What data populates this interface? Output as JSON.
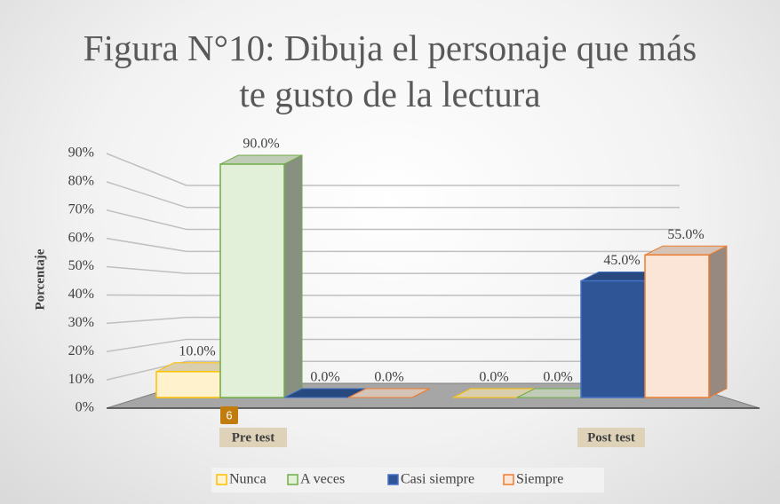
{
  "chart_data": {
    "type": "bar3d",
    "title": "Figura N°10: Dibuja el personaje que más te gusto de la lectura",
    "y_label": "Porcentaje",
    "categories": [
      "Pre test",
      "Post test"
    ],
    "series": [
      {
        "name": "Nunca",
        "color": "#fff2cc",
        "edge": "#ffc000",
        "values": [
          10,
          0
        ],
        "value_labels": [
          "10.0%",
          "0.0%"
        ]
      },
      {
        "name": "A veces",
        "color": "#e2f0d9",
        "edge": "#70ad47",
        "values": [
          90,
          0
        ],
        "value_labels": [
          "90.0%",
          "0.0%"
        ]
      },
      {
        "name": "Casi siempre",
        "color": "#2f5597",
        "edge": "#4472c4",
        "values": [
          0,
          45
        ],
        "value_labels": [
          "0.0%",
          "45.0%"
        ]
      },
      {
        "name": "Siempre",
        "color": "#fbe5d6",
        "edge": "#ed7d31",
        "values": [
          0,
          55
        ],
        "value_labels": [
          "0.0%",
          "55.0%"
        ]
      }
    ],
    "ylim": [
      0,
      90
    ],
    "yticks": [
      {
        "value": 0,
        "label": "0%"
      },
      {
        "value": 10,
        "label": "10%"
      },
      {
        "value": 20,
        "label": "20%"
      },
      {
        "value": 30,
        "label": "30%"
      },
      {
        "value": 40,
        "label": "40%"
      },
      {
        "value": 50,
        "label": "50%"
      },
      {
        "value": 60,
        "label": "60%"
      },
      {
        "value": 70,
        "label": "70%"
      },
      {
        "value": 80,
        "label": "80%"
      },
      {
        "value": 90,
        "label": "90%"
      }
    ],
    "grid": true,
    "legend": "bottom",
    "badge": "6"
  }
}
